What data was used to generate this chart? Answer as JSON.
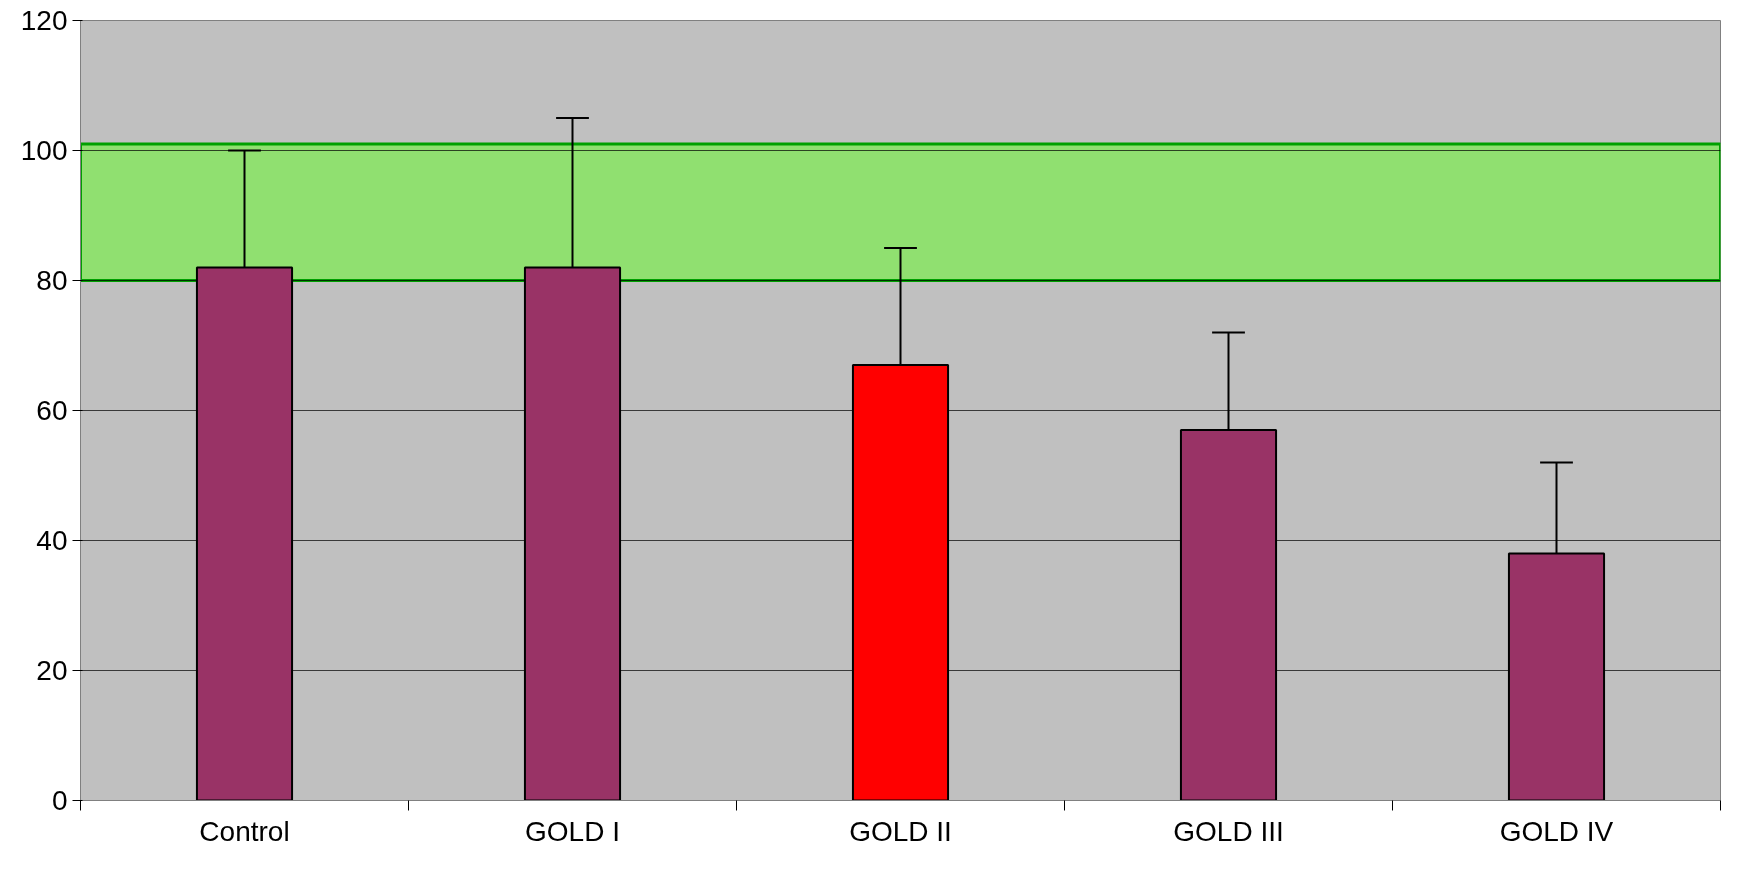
{
  "chart_data": {
    "type": "bar",
    "categories": [
      "Control",
      "GOLD I",
      "GOLD II",
      "GOLD III",
      "GOLD IV"
    ],
    "values": [
      82,
      82,
      67,
      57,
      38
    ],
    "colors": [
      "#993366",
      "#993366",
      "#ff0000",
      "#993366",
      "#993366"
    ],
    "errors": [
      [
        82,
        100
      ],
      [
        82,
        105
      ],
      [
        67,
        85
      ],
      [
        57,
        72
      ],
      [
        38,
        52
      ]
    ],
    "ylim": [
      0,
      120
    ],
    "yticks": [
      0,
      20,
      40,
      60,
      80,
      100,
      120
    ],
    "grid": "y",
    "bands": [
      {
        "axis": "y",
        "from": 80,
        "to": 101,
        "color": "#90e070"
      }
    ]
  }
}
